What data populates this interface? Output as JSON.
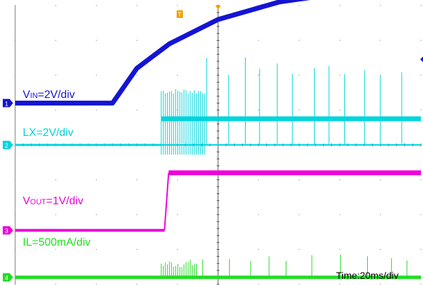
{
  "chart_data": {
    "type": "line",
    "title": "",
    "xlabel": "Time:20ms/div",
    "ylabel": "",
    "grid": true,
    "x_range_divisions": [
      0,
      10
    ],
    "y_range_divisions": [
      -4,
      4
    ],
    "trigger_marker": "T",
    "series": [
      {
        "name": "VIN=2V/div",
        "label_main": "V",
        "label_sub": "IN",
        "label_rest": "=2V/div",
        "channel": "1",
        "color": "#1414d4",
        "scale": "2V/div",
        "description_points_div": [
          [
            0,
            1.2
          ],
          [
            2.4,
            1.2
          ],
          [
            3.0,
            2.2
          ],
          [
            3.8,
            2.9
          ],
          [
            5.0,
            3.6
          ],
          [
            6.5,
            4.1
          ],
          [
            8.0,
            4.35
          ],
          [
            10,
            4.4
          ]
        ]
      },
      {
        "name": "LX=2V/div",
        "label_main": "LX=2V/div",
        "channel": "2",
        "color": "#00d4dc",
        "scale": "2V/div",
        "baseline_div": -0.0,
        "switching_level_div": 0.75,
        "switching_start_div": 3.6
      },
      {
        "name": "VOUT=1V/div",
        "label_main": "V",
        "label_sub": "OUT",
        "label_rest": "=1V/div",
        "channel": "3",
        "color": "#ee00dc",
        "scale": "1V/div",
        "low_div": -2.45,
        "high_div": -0.8,
        "step_div": 3.68
      },
      {
        "name": "IL=500mA/div",
        "label_main": "IL=500mA/div",
        "channel": "4",
        "color": "#22dd22",
        "scale": "500mA/div",
        "baseline_div": -3.8,
        "spike_start_div": 3.6
      }
    ]
  }
}
